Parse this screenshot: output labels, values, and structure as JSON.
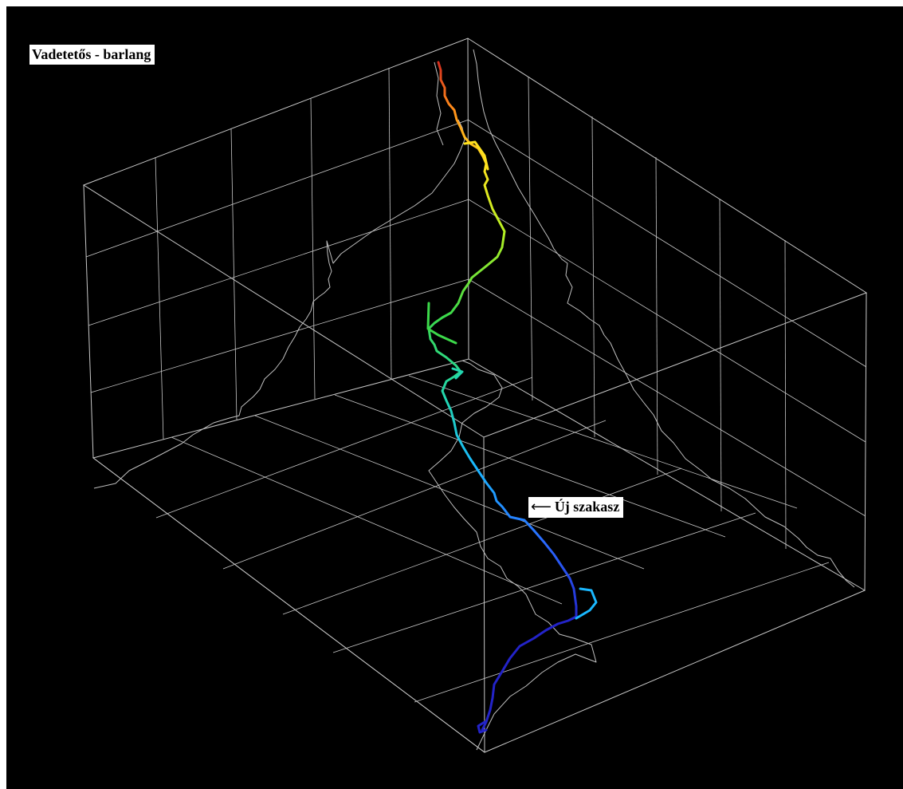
{
  "title": "Vadetetős - barlang",
  "annotation": {
    "arrow": "⟵",
    "text": "Új szakasz"
  },
  "colors": {
    "background": "#000000",
    "grid": "#c8c8c8",
    "shadow_trace": "#c0c0c0",
    "passage_gradient": [
      "#d7301f",
      "#ff8c1a",
      "#ffe21f",
      "#b6f022",
      "#3cd94a",
      "#22d6b0",
      "#1ab8ff",
      "#2a68ff",
      "#2323c8"
    ]
  }
}
